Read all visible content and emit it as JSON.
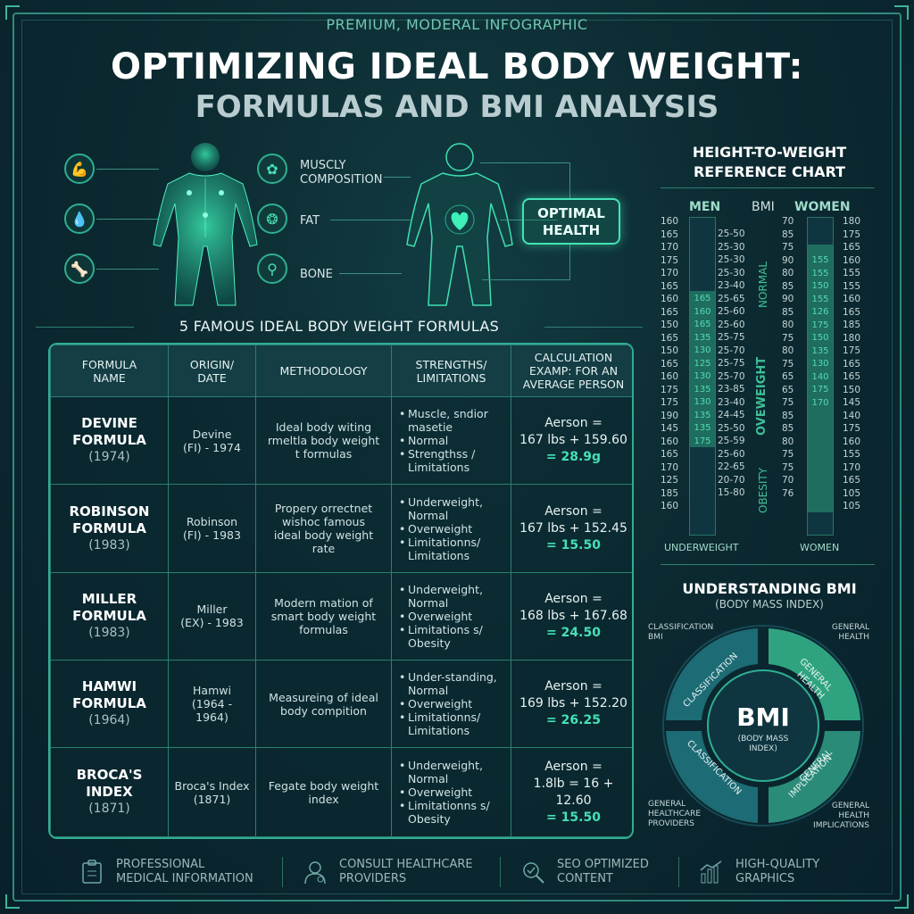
{
  "header": {
    "tagline": "PREMIUM, MODERAL INFOGRAPHIC",
    "title_line1": "OPTIMIZING IDEAL BODY WEIGHT:",
    "title_line2": "FORMULAS AND BMI ANALYSIS"
  },
  "anatomy": {
    "labels": {
      "muscle": "MUSCLY\nCOMPOSITION",
      "fat": "FAT",
      "bone": "BONE"
    },
    "icons": [
      "muscle-arm-icon",
      "water-drop-icon",
      "bone-icon",
      "muscle-fiber-icon",
      "fat-cells-icon",
      "tooth-bone-icon"
    ],
    "optimal_health": "OPTIMAL\nHEALTH"
  },
  "formulas_section": {
    "title": "5 FAMOUS IDEAL BODY WEIGHT FORMULAS",
    "columns": [
      "FORMULA\nNAME",
      "ORIGIN/\nDATE",
      "METHODOLOGY",
      "STRENGTHS/\nLIMITATIONS",
      "CALCULATION\nEXAMP: FOR AN\nAVERAGE PERSON"
    ],
    "rows": [
      {
        "name": "DEVINE\nFORMULA",
        "year": "(1974)",
        "origin": "Devine\n(FI) - 1974",
        "method": "Ideal body witing\nrmeltla body weight\nt formulas",
        "strengths": [
          "Muscle, sndior\nmasetie",
          "Normal",
          "Strengthss /\nLimitations"
        ],
        "calc_line1": "Aerson =",
        "calc_line2": "167 lbs + 159.60",
        "calc_result": "= 28.9g"
      },
      {
        "name": "ROBINSON\nFORMULA",
        "year": "(1983)",
        "origin": "Robinson\n(FI) - 1983",
        "method": "Propery orrectnet\nwishoc famous\nideal body weight\nrate",
        "strengths": [
          "Underweight,\nNormal",
          "Overweight",
          "Limitationns/\nLimitations"
        ],
        "calc_line1": "Aerson =",
        "calc_line2": "167 lbs + 152.45",
        "calc_result": "= 15.50"
      },
      {
        "name": "MILLER\nFORMULA",
        "year": "(1983)",
        "origin": "Miller\n(EX) - 1983",
        "method": "Modern mation of\nsmart body weight\nformulas",
        "strengths": [
          "Underweight,\nNormal",
          "Overweight",
          "Limitations s/\nObesity"
        ],
        "calc_line1": "Aerson =",
        "calc_line2": "168 lbs + 167.68",
        "calc_result": "= 24.50"
      },
      {
        "name": "HAMWI\nFORMULA",
        "year": "(1964)",
        "origin": "Hamwi\n(1964 - 1964)",
        "method": "Measureing of ideal\nbody compition",
        "strengths": [
          "Under-standing,\nNormal",
          "Overweight",
          "Limitationns/\nLimitations"
        ],
        "calc_line1": "Aerson =",
        "calc_line2": "169 lbs + 152.20",
        "calc_result": "= 26.25"
      },
      {
        "name": "BROCA'S\nINDEX",
        "year": "(1871)",
        "origin": "Broca's Index\n(1871)",
        "method": "Fegate body weight\nindex",
        "strengths": [
          "Underweight,\nNormal",
          "Overweight",
          "Limitationns s/\nObesity"
        ],
        "calc_line1": "Aerson =",
        "calc_line2": "1.8lb = 16 + 12.60",
        "calc_result": "= 15.50"
      }
    ]
  },
  "reference_chart": {
    "title": "HEIGHT-TO-WEIGHT\nREFERENCE CHART",
    "headers": {
      "men": "MEN",
      "bmi": "BMI",
      "women": "WOMEN"
    },
    "men_heights": [
      "160",
      "165",
      "170",
      "175",
      "170",
      "165",
      "160",
      "165",
      "150",
      "165",
      "150",
      "165",
      "160",
      "175",
      "175",
      "190",
      "145",
      "160",
      "165",
      "170",
      "125",
      "185",
      "160"
    ],
    "men_bar_values": [
      "165",
      "160",
      "165",
      "135",
      "130",
      "125",
      "130",
      "135",
      "130",
      "135",
      "135",
      "175"
    ],
    "bmi_ranges": [
      "25-50",
      "25-30",
      "25-30",
      "25-30",
      "23-40",
      "25-65",
      "25-60",
      "25-60",
      "25-75",
      "25-70",
      "25-75",
      "25-70",
      "23-85",
      "23-40",
      "24-45",
      "25-50",
      "25-59",
      "25-60",
      "22-65",
      "20-70",
      "15-80"
    ],
    "women_weights": [
      "70",
      "85",
      "75",
      "90",
      "80",
      "85",
      "90",
      "85",
      "80",
      "75",
      "80",
      "75",
      "65",
      "65",
      "75",
      "85",
      "85",
      "80",
      "75",
      "75",
      "70",
      "76"
    ],
    "women_bar_values": [
      "155",
      "155",
      "150",
      "155",
      "126",
      "175",
      "150",
      "135",
      "130",
      "140",
      "175",
      "170"
    ],
    "women_heights": [
      "180",
      "175",
      "165",
      "160",
      "155",
      "155",
      "160",
      "165",
      "185",
      "180",
      "175",
      "165",
      "165",
      "150",
      "145",
      "140",
      "175",
      "160",
      "155",
      "170",
      "165",
      "105",
      "105"
    ],
    "bmi_categories": [
      "NORMAL",
      "OVEWEIGHT",
      "OBESITY"
    ],
    "footer_left": "UNDERWEIGHT",
    "footer_right": "WOMEN"
  },
  "bmi_wheel": {
    "title": "UNDERSTANDING BMI",
    "subtitle": "(BODY MASS INDEX)",
    "center_big": "BMI",
    "center_small": "(BODY MASS\nINDEX)",
    "segments": [
      "CLASSIFICATION",
      "GENERAL\nHEALTH",
      "CLASSIFICATION",
      "GENERAL\nIMPLICATION"
    ],
    "corner_labels": {
      "tl": "CLASSIFICATION\nBMI",
      "tr": "GENERAL\nHEALTH",
      "bl": "GENERAL\nHEALTHCARE\nPROVIDERS",
      "br": "GENERAL\nHEALTH\nIMPLICATIONS"
    },
    "colors": {
      "dark": "#1d6b74",
      "bright": "#2fa37f",
      "ring": "#174a55"
    }
  },
  "footer": {
    "items": [
      {
        "label": "PROFESSIONAL\nMEDICAL INFORMATION",
        "icon": "clipboard-icon"
      },
      {
        "label": "CONSULT HEALTHCARE\nPROVIDERS",
        "icon": "doctor-icon"
      },
      {
        "label": "SEO OPTIMIZED\nCONTENT",
        "icon": "magnifier-check-icon"
      },
      {
        "label": "HIGH-QUALITY\nGRAPHICS",
        "icon": "bar-chart-icon"
      }
    ]
  },
  "colors": {
    "accent": "#43e3b6",
    "border": "#2fae92",
    "background": "#0c2a31"
  }
}
